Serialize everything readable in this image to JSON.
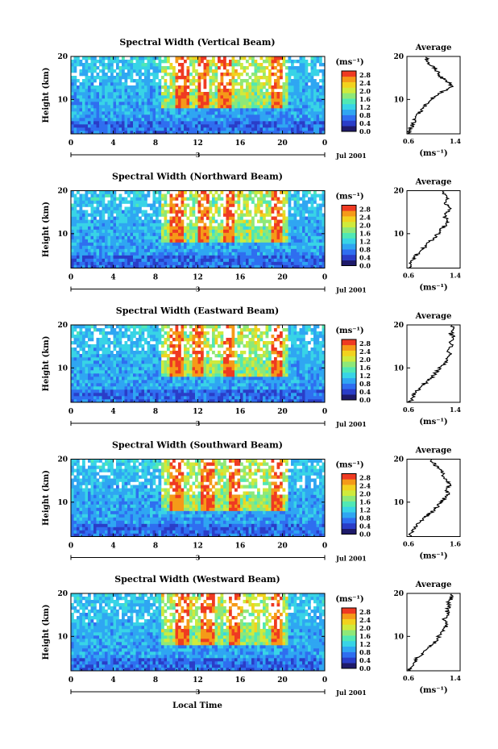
{
  "x_axis_label": "Local Time",
  "colorbar": {
    "unit_label": "(ms⁻¹)",
    "tick_labels": [
      "2.8",
      "2.4",
      "2.0",
      "1.6",
      "1.2",
      "0.8",
      "0.4",
      "0.0"
    ],
    "tick_values": [
      2.8,
      2.4,
      2.0,
      1.6,
      1.2,
      0.8,
      0.4,
      0.0
    ],
    "colors": [
      "#1e1a6a",
      "#2a3dc8",
      "#2f6ef0",
      "#2fa6f2",
      "#38d4e6",
      "#50e8b4",
      "#8ee878",
      "#cfea3c",
      "#f2d21e",
      "#f59a18",
      "#ef3a22"
    ]
  },
  "chart_data": [
    {
      "type": "heatmap",
      "title": "Spectral Width (Vertical Beam)",
      "ylabel": "Height (km)",
      "x_ticks": [
        "0",
        "4",
        "8",
        "12",
        "16",
        "20",
        "0"
      ],
      "y_ticks": [
        "20",
        "10"
      ],
      "date_label": "Jul 2001",
      "date_marker": "3",
      "xlim": [
        0,
        24
      ],
      "ylim": [
        2,
        20
      ],
      "high_width_hours": [
        10.5,
        12.5,
        14.5,
        19.5
      ],
      "profile": {
        "title": "Average",
        "xlabel": "(ms⁻¹)",
        "x_ticks": [
          "0.6",
          "1.4"
        ],
        "xlim": [
          0.6,
          1.6
        ],
        "y_ticks": [
          "20",
          "10"
        ],
        "height": [
          2,
          3,
          4,
          5,
          6,
          7,
          8,
          9,
          10,
          11,
          12,
          13,
          14,
          15,
          16,
          17,
          18,
          19,
          20
        ],
        "values": [
          0.62,
          0.66,
          0.7,
          0.74,
          0.78,
          0.84,
          0.9,
          0.98,
          1.05,
          1.15,
          1.3,
          1.45,
          1.38,
          1.25,
          1.2,
          1.15,
          1.05,
          0.95,
          1.0
        ]
      }
    },
    {
      "type": "heatmap",
      "title": "Spectral Width (Northward Beam)",
      "ylabel": "Height (km)",
      "x_ticks": [
        "0",
        "4",
        "8",
        "12",
        "16",
        "20",
        "0"
      ],
      "y_ticks": [
        "20",
        "10"
      ],
      "date_label": "Jul 2001",
      "date_marker": "3",
      "xlim": [
        0,
        24
      ],
      "ylim": [
        2,
        20
      ],
      "high_width_hours": [
        10,
        12.5,
        15,
        19.5
      ],
      "profile": {
        "title": "Average",
        "xlabel": "(ms⁻¹)",
        "x_ticks": [
          "0.6",
          "1.4"
        ],
        "xlim": [
          0.6,
          1.6
        ],
        "y_ticks": [
          "20",
          "10"
        ],
        "height": [
          2,
          3,
          4,
          5,
          6,
          7,
          8,
          9,
          10,
          11,
          12,
          13,
          14,
          15,
          16,
          17,
          18,
          19,
          20
        ],
        "values": [
          0.64,
          0.68,
          0.72,
          0.78,
          0.85,
          0.95,
          1.02,
          1.1,
          1.2,
          1.25,
          1.32,
          1.38,
          1.3,
          1.36,
          1.4,
          1.32,
          1.35,
          1.3,
          1.28
        ]
      }
    },
    {
      "type": "heatmap",
      "title": "Spectral Width (Eastward Beam)",
      "ylabel": "Height (km)",
      "x_ticks": [
        "0",
        "4",
        "8",
        "12",
        "16",
        "20",
        "0"
      ],
      "y_ticks": [
        "20",
        "10"
      ],
      "date_label": "Jul 2001",
      "date_marker": "3",
      "xlim": [
        0,
        24
      ],
      "ylim": [
        2,
        20
      ],
      "high_width_hours": [
        10,
        12,
        15,
        19.5
      ],
      "profile": {
        "title": "Average",
        "xlabel": "(ms⁻¹)",
        "x_ticks": [
          "0.6",
          "1.4"
        ],
        "xlim": [
          0.6,
          1.6
        ],
        "y_ticks": [
          "20",
          "10"
        ],
        "height": [
          2,
          3,
          4,
          5,
          6,
          7,
          8,
          9,
          10,
          11,
          12,
          13,
          14,
          15,
          16,
          17,
          18,
          19,
          20
        ],
        "values": [
          0.65,
          0.7,
          0.75,
          0.82,
          0.9,
          1.0,
          1.08,
          1.15,
          1.22,
          1.3,
          1.35,
          1.42,
          1.38,
          1.45,
          1.4,
          1.48,
          1.42,
          1.5,
          1.45
        ]
      }
    },
    {
      "type": "heatmap",
      "title": "Spectral Width (Southward Beam)",
      "ylabel": "Height (km)",
      "x_ticks": [
        "0",
        "4",
        "8",
        "12",
        "16",
        "20",
        "0"
      ],
      "y_ticks": [
        "20",
        "10"
      ],
      "date_label": "Jul 2001",
      "date_marker": "3",
      "xlim": [
        0,
        24
      ],
      "ylim": [
        2,
        20
      ],
      "high_width_hours": [
        10,
        13,
        15.5,
        19.5
      ],
      "profile": {
        "title": "Average",
        "xlabel": "(ms⁻¹)",
        "x_ticks": [
          "0.6",
          "1.6"
        ],
        "xlim": [
          0.6,
          1.6
        ],
        "y_ticks": [
          "20",
          "10"
        ],
        "height": [
          2,
          3,
          4,
          5,
          6,
          7,
          8,
          9,
          10,
          11,
          12,
          13,
          14,
          15,
          16,
          17,
          18,
          19,
          20
        ],
        "values": [
          0.65,
          0.7,
          0.74,
          0.8,
          0.9,
          1.0,
          1.1,
          1.18,
          1.25,
          1.3,
          1.38,
          1.35,
          1.42,
          1.36,
          1.3,
          1.25,
          1.18,
          1.1,
          1.05
        ]
      }
    },
    {
      "type": "heatmap",
      "title": "Spectral Width (Westward Beam)",
      "ylabel": "Height (km)",
      "x_ticks": [
        "0",
        "4",
        "8",
        "12",
        "16",
        "20",
        "0"
      ],
      "y_ticks": [
        "20",
        "10"
      ],
      "date_label": "Jul 2001",
      "date_marker": "3",
      "xlim": [
        0,
        24
      ],
      "ylim": [
        2,
        20
      ],
      "high_width_hours": [
        10.5,
        13,
        15.5,
        19.5
      ],
      "profile": {
        "title": "Average",
        "xlabel": "(ms⁻¹)",
        "x_ticks": [
          "0.6",
          "1.4"
        ],
        "xlim": [
          0.6,
          1.6
        ],
        "y_ticks": [
          "20",
          "10"
        ],
        "height": [
          2,
          3,
          4,
          5,
          6,
          7,
          8,
          9,
          10,
          11,
          12,
          13,
          14,
          15,
          16,
          17,
          18,
          19,
          20
        ],
        "values": [
          0.64,
          0.68,
          0.74,
          0.8,
          0.88,
          0.98,
          1.08,
          1.15,
          1.2,
          1.28,
          1.32,
          1.36,
          1.3,
          1.38,
          1.35,
          1.4,
          1.36,
          1.45,
          1.42
        ]
      }
    }
  ]
}
